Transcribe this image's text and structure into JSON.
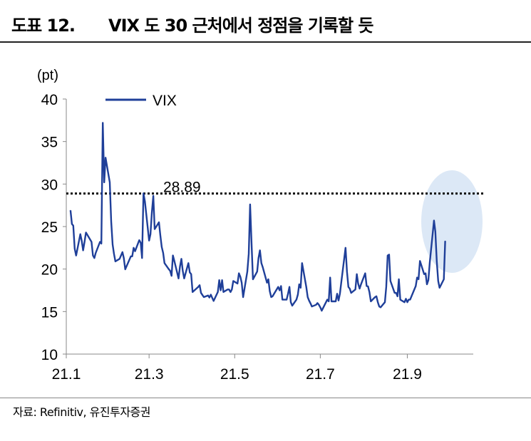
{
  "figure": {
    "number": "도표 12.",
    "title": "VIX 도 30 근처에서 정점을 기록할 듯",
    "source": "자료: Refinitiv, 유진투자증권"
  },
  "chart_data": {
    "type": "line",
    "unit": "(pt)",
    "ylim": [
      10,
      40
    ],
    "y_ticks": [
      "10",
      "15",
      "20",
      "25",
      "30",
      "35",
      "40"
    ],
    "x_ticks": [
      "21.1",
      "21.3",
      "21.5",
      "21.7",
      "21.9"
    ],
    "grid": false,
    "legend_position": "top-left",
    "reference_line": {
      "value": 28.89,
      "label": "28.89",
      "style": "dotted"
    },
    "highlight": {
      "shape": "ellipse",
      "color": "#dce8f6",
      "around": "latest values (Sep 2021)"
    },
    "series": [
      {
        "name": "VIX",
        "color": "#1f3f99",
        "points": [
          [
            "2021-01-04",
            26.9
          ],
          [
            "2021-01-05",
            25.3
          ],
          [
            "2021-01-06",
            25.1
          ],
          [
            "2021-01-07",
            22.4
          ],
          [
            "2021-01-08",
            21.6
          ],
          [
            "2021-01-11",
            24.1
          ],
          [
            "2021-01-12",
            23.3
          ],
          [
            "2021-01-13",
            22.2
          ],
          [
            "2021-01-14",
            23.2
          ],
          [
            "2021-01-15",
            24.3
          ],
          [
            "2021-01-19",
            23.2
          ],
          [
            "2021-01-20",
            21.6
          ],
          [
            "2021-01-21",
            21.3
          ],
          [
            "2021-01-22",
            21.9
          ],
          [
            "2021-01-25",
            23.2
          ],
          [
            "2021-01-26",
            23.0
          ],
          [
            "2021-01-27",
            37.2
          ],
          [
            "2021-01-28",
            30.2
          ],
          [
            "2021-01-29",
            33.1
          ],
          [
            "2021-02-01",
            30.2
          ],
          [
            "2021-02-02",
            25.6
          ],
          [
            "2021-02-03",
            22.9
          ],
          [
            "2021-02-04",
            21.8
          ],
          [
            "2021-02-05",
            20.9
          ],
          [
            "2021-02-08",
            21.2
          ],
          [
            "2021-02-09",
            21.6
          ],
          [
            "2021-02-10",
            21.99
          ],
          [
            "2021-02-11",
            21.3
          ],
          [
            "2021-02-12",
            19.97
          ],
          [
            "2021-02-16",
            21.5
          ],
          [
            "2021-02-17",
            21.5
          ],
          [
            "2021-02-18",
            22.5
          ],
          [
            "2021-02-19",
            22.1
          ],
          [
            "2021-02-22",
            23.4
          ],
          [
            "2021-02-23",
            23.1
          ],
          [
            "2021-02-24",
            21.3
          ],
          [
            "2021-02-25",
            28.9
          ],
          [
            "2021-02-26",
            27.95
          ],
          [
            "2021-03-01",
            23.35
          ],
          [
            "2021-03-02",
            24.1
          ],
          [
            "2021-03-03",
            26.7
          ],
          [
            "2021-03-04",
            28.6
          ],
          [
            "2021-03-05",
            24.7
          ],
          [
            "2021-03-08",
            25.5
          ],
          [
            "2021-03-09",
            24.0
          ],
          [
            "2021-03-10",
            22.6
          ],
          [
            "2021-03-11",
            21.9
          ],
          [
            "2021-03-12",
            20.7
          ],
          [
            "2021-03-15",
            20.0
          ],
          [
            "2021-03-16",
            19.8
          ],
          [
            "2021-03-17",
            19.2
          ],
          [
            "2021-03-18",
            21.6
          ],
          [
            "2021-03-19",
            20.95
          ],
          [
            "2021-03-22",
            18.9
          ],
          [
            "2021-03-23",
            20.3
          ],
          [
            "2021-03-24",
            21.2
          ],
          [
            "2021-03-25",
            19.8
          ],
          [
            "2021-03-26",
            18.9
          ],
          [
            "2021-03-29",
            20.7
          ],
          [
            "2021-03-30",
            19.6
          ],
          [
            "2021-03-31",
            19.4
          ],
          [
            "2021-04-01",
            17.3
          ],
          [
            "2021-04-05",
            17.9
          ],
          [
            "2021-04-06",
            18.1
          ],
          [
            "2021-04-07",
            17.2
          ],
          [
            "2021-04-08",
            16.95
          ],
          [
            "2021-04-09",
            16.7
          ],
          [
            "2021-04-12",
            16.9
          ],
          [
            "2021-04-13",
            16.65
          ],
          [
            "2021-04-14",
            16.99
          ],
          [
            "2021-04-15",
            16.6
          ],
          [
            "2021-04-16",
            16.25
          ],
          [
            "2021-04-19",
            17.3
          ],
          [
            "2021-04-20",
            18.7
          ],
          [
            "2021-04-21",
            17.5
          ],
          [
            "2021-04-22",
            18.7
          ],
          [
            "2021-04-23",
            17.3
          ],
          [
            "2021-04-26",
            17.6
          ],
          [
            "2021-04-27",
            17.6
          ],
          [
            "2021-04-28",
            17.3
          ],
          [
            "2021-04-29",
            17.6
          ],
          [
            "2021-04-30",
            18.6
          ],
          [
            "2021-05-03",
            18.3
          ],
          [
            "2021-05-04",
            19.5
          ],
          [
            "2021-05-05",
            19.1
          ],
          [
            "2021-05-06",
            18.4
          ],
          [
            "2021-05-07",
            16.7
          ],
          [
            "2021-05-10",
            19.7
          ],
          [
            "2021-05-11",
            21.8
          ],
          [
            "2021-05-12",
            27.6
          ],
          [
            "2021-05-13",
            23.1
          ],
          [
            "2021-05-14",
            18.8
          ],
          [
            "2021-05-17",
            19.7
          ],
          [
            "2021-05-18",
            21.3
          ],
          [
            "2021-05-19",
            22.2
          ],
          [
            "2021-05-20",
            20.7
          ],
          [
            "2021-05-21",
            20.2
          ],
          [
            "2021-05-24",
            18.4
          ],
          [
            "2021-05-25",
            18.8
          ],
          [
            "2021-05-26",
            17.4
          ],
          [
            "2021-05-27",
            16.7
          ],
          [
            "2021-05-28",
            16.8
          ],
          [
            "2021-06-01",
            17.9
          ],
          [
            "2021-06-02",
            17.5
          ],
          [
            "2021-06-03",
            18.0
          ],
          [
            "2021-06-04",
            16.4
          ],
          [
            "2021-06-07",
            16.4
          ],
          [
            "2021-06-08",
            17.1
          ],
          [
            "2021-06-09",
            17.9
          ],
          [
            "2021-06-10",
            16.1
          ],
          [
            "2021-06-11",
            15.7
          ],
          [
            "2021-06-14",
            16.4
          ],
          [
            "2021-06-15",
            17.0
          ],
          [
            "2021-06-16",
            18.2
          ],
          [
            "2021-06-17",
            17.8
          ],
          [
            "2021-06-18",
            20.7
          ],
          [
            "2021-06-21",
            17.9
          ],
          [
            "2021-06-22",
            16.7
          ],
          [
            "2021-06-23",
            16.3
          ],
          [
            "2021-06-24",
            15.97
          ],
          [
            "2021-06-25",
            15.6
          ],
          [
            "2021-06-28",
            15.8
          ],
          [
            "2021-06-29",
            16.0
          ],
          [
            "2021-06-30",
            15.8
          ],
          [
            "2021-07-01",
            15.5
          ],
          [
            "2021-07-02",
            15.1
          ],
          [
            "2021-07-06",
            16.4
          ],
          [
            "2021-07-07",
            16.2
          ],
          [
            "2021-07-08",
            19.0
          ],
          [
            "2021-07-09",
            16.2
          ],
          [
            "2021-07-12",
            16.2
          ],
          [
            "2021-07-13",
            17.1
          ],
          [
            "2021-07-14",
            16.3
          ],
          [
            "2021-07-15",
            17.1
          ],
          [
            "2021-07-16",
            18.5
          ],
          [
            "2021-07-19",
            22.5
          ],
          [
            "2021-07-20",
            19.7
          ],
          [
            "2021-07-21",
            17.9
          ],
          [
            "2021-07-22",
            17.7
          ],
          [
            "2021-07-23",
            17.2
          ],
          [
            "2021-07-26",
            17.6
          ],
          [
            "2021-07-27",
            19.4
          ],
          [
            "2021-07-28",
            18.3
          ],
          [
            "2021-07-29",
            17.7
          ],
          [
            "2021-07-30",
            18.2
          ],
          [
            "2021-08-02",
            19.5
          ],
          [
            "2021-08-03",
            18.0
          ],
          [
            "2021-08-04",
            17.97
          ],
          [
            "2021-08-05",
            17.3
          ],
          [
            "2021-08-06",
            16.2
          ],
          [
            "2021-08-09",
            16.7
          ],
          [
            "2021-08-10",
            16.8
          ],
          [
            "2021-08-11",
            16.1
          ],
          [
            "2021-08-12",
            15.6
          ],
          [
            "2021-08-13",
            15.5
          ],
          [
            "2021-08-16",
            16.1
          ],
          [
            "2021-08-17",
            17.9
          ],
          [
            "2021-08-18",
            21.6
          ],
          [
            "2021-08-19",
            21.7
          ],
          [
            "2021-08-20",
            18.6
          ],
          [
            "2021-08-23",
            17.2
          ],
          [
            "2021-08-24",
            17.2
          ],
          [
            "2021-08-25",
            16.8
          ],
          [
            "2021-08-26",
            18.8
          ],
          [
            "2021-08-27",
            16.4
          ],
          [
            "2021-08-30",
            16.1
          ],
          [
            "2021-08-31",
            16.5
          ],
          [
            "2021-09-01",
            16.1
          ],
          [
            "2021-09-02",
            16.4
          ],
          [
            "2021-09-03",
            16.4
          ],
          [
            "2021-09-07",
            18.0
          ],
          [
            "2021-09-08",
            19.0
          ],
          [
            "2021-09-09",
            18.8
          ],
          [
            "2021-09-10",
            20.95
          ],
          [
            "2021-09-13",
            19.4
          ],
          [
            "2021-09-14",
            19.5
          ],
          [
            "2021-09-15",
            18.2
          ],
          [
            "2021-09-16",
            18.7
          ],
          [
            "2021-09-17",
            20.8
          ],
          [
            "2021-09-20",
            25.7
          ],
          [
            "2021-09-21",
            24.4
          ],
          [
            "2021-09-22",
            20.9
          ],
          [
            "2021-09-23",
            18.6
          ],
          [
            "2021-09-24",
            17.8
          ],
          [
            "2021-09-27",
            18.8
          ],
          [
            "2021-09-28",
            23.3
          ]
        ]
      }
    ]
  }
}
